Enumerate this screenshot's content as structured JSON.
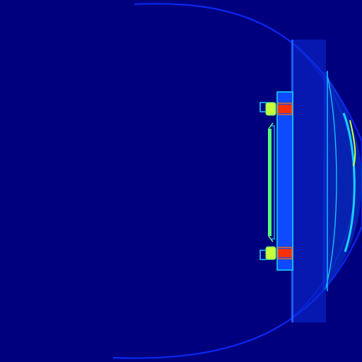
{
  "image": {
    "kind": "false-color field map (jet colormap)",
    "colors": {
      "background": "#00007f",
      "outline_blue": "#0a2cff",
      "bright_blue": "#1c5cff",
      "cyan": "#19d0ff",
      "green": "#59ff7a",
      "yellow_green": "#c8ff3a",
      "orange": "#ff6a00",
      "red": "#ff3000"
    }
  }
}
